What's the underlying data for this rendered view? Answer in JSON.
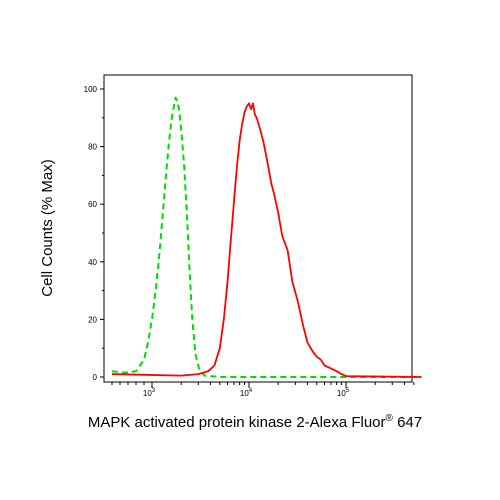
{
  "chart_data": {
    "type": "line",
    "xscale": "biexponential-log",
    "xlim": [
      -300,
      600000
    ],
    "ylim": [
      0,
      100
    ],
    "xlabel": {
      "main": "MAPK activated protein kinase 2-Alexa Fluor",
      "sup": "®",
      "tail": " 647"
    },
    "ylabel": "Cell Counts (% Max)",
    "y_ticks": [
      {
        "value": 0,
        "label": "0"
      },
      {
        "value": 20,
        "label": "20"
      },
      {
        "value": 40,
        "label": "40"
      },
      {
        "value": 60,
        "label": "60"
      },
      {
        "value": 80,
        "label": "80"
      },
      {
        "value": 100,
        "label": "100"
      }
    ],
    "x_major_ticks": [
      {
        "value": 1000,
        "base": "10",
        "exp": "3"
      },
      {
        "value": 10000,
        "base": "10",
        "exp": "4"
      },
      {
        "value": 100000,
        "base": "10",
        "exp": "5"
      }
    ],
    "x_minor_ticks": [
      0,
      200,
      400,
      600,
      800,
      2000,
      3000,
      4000,
      5000,
      6000,
      7000,
      8000,
      9000,
      20000,
      30000,
      40000,
      50000,
      60000,
      70000,
      80000,
      90000,
      200000,
      300000,
      400000,
      500000
    ],
    "series": [
      {
        "color": "#00dd00",
        "dashed": true,
        "points": [
          [
            0,
            2
          ],
          [
            300,
            1.5
          ],
          [
            600,
            2
          ],
          [
            800,
            6
          ],
          [
            900,
            12
          ],
          [
            1000,
            20
          ],
          [
            1100,
            31
          ],
          [
            1200,
            44
          ],
          [
            1300,
            58
          ],
          [
            1400,
            71
          ],
          [
            1500,
            82
          ],
          [
            1600,
            90
          ],
          [
            1700,
            95
          ],
          [
            1750,
            97
          ],
          [
            1800,
            96
          ],
          [
            1900,
            93
          ],
          [
            2000,
            86
          ],
          [
            2150,
            73
          ],
          [
            2300,
            55
          ],
          [
            2450,
            36
          ],
          [
            2600,
            20
          ],
          [
            2800,
            8
          ],
          [
            3100,
            2
          ],
          [
            3500,
            0.5
          ],
          [
            5000,
            0
          ],
          [
            600000,
            0
          ]
        ]
      },
      {
        "color": "#ff0000",
        "dashed": false,
        "points": [
          [
            0,
            1
          ],
          [
            2000,
            0.5
          ],
          [
            3000,
            1
          ],
          [
            3800,
            2
          ],
          [
            4400,
            4
          ],
          [
            5000,
            10
          ],
          [
            5500,
            20
          ],
          [
            6000,
            33
          ],
          [
            6500,
            48
          ],
          [
            7000,
            61
          ],
          [
            7500,
            73
          ],
          [
            8000,
            82
          ],
          [
            8500,
            88
          ],
          [
            9000,
            92
          ],
          [
            9500,
            94
          ],
          [
            10000,
            95
          ],
          [
            10500,
            93
          ],
          [
            11000,
            95
          ],
          [
            11500,
            91
          ],
          [
            12000,
            90
          ],
          [
            13000,
            86
          ],
          [
            14000,
            82
          ],
          [
            15000,
            77
          ],
          [
            16000,
            72
          ],
          [
            17000,
            67
          ],
          [
            18000,
            64
          ],
          [
            20000,
            57
          ],
          [
            22000,
            49
          ],
          [
            25000,
            44
          ],
          [
            28000,
            33
          ],
          [
            32000,
            26
          ],
          [
            36000,
            18
          ],
          [
            40000,
            12
          ],
          [
            45000,
            9
          ],
          [
            50000,
            7
          ],
          [
            55000,
            6
          ],
          [
            60000,
            4
          ],
          [
            70000,
            3
          ],
          [
            80000,
            2
          ],
          [
            90000,
            1
          ],
          [
            100000,
            0.3
          ],
          [
            600000,
            0
          ]
        ]
      }
    ]
  }
}
